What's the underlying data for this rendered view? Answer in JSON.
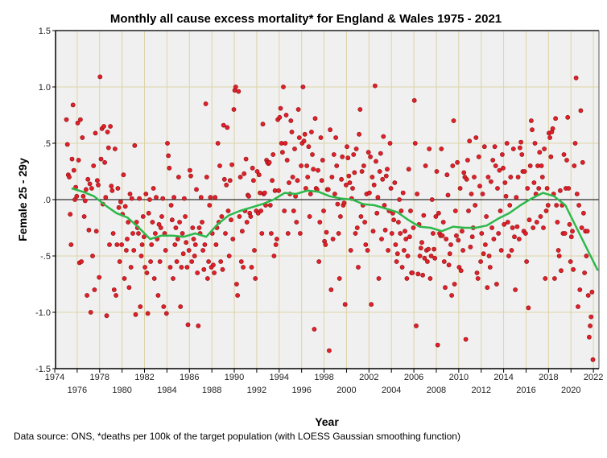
{
  "chart_data": {
    "type": "scatter",
    "title": "Monthly all cause excess mortality* for England & Wales 1975 - 2021",
    "xlabel": "Year",
    "ylabel": "Female 25 - 29y",
    "footnote": "Data source: ONS, *deaths per 100k of the target population (with LOESS Gaussian smoothing function)",
    "xlim": [
      1974,
      2022
    ],
    "ylim": [
      -1.5,
      1.5
    ],
    "x_ticks": [
      "1974",
      "1976",
      "1978",
      "1980",
      "1982",
      "1984",
      "1986",
      "1988",
      "1990",
      "1992",
      "1994",
      "1996",
      "1998",
      "2000",
      "2002",
      "2004",
      "2006",
      "2008",
      "2010",
      "2012",
      "2014",
      "2016",
      "2018",
      "2020",
      "2022"
    ],
    "y_ticks": [
      {
        "value": 1.5,
        "label": "1.5"
      },
      {
        "value": 1.0,
        "label": "1.0"
      },
      {
        "value": 0.5,
        "label": ".5"
      },
      {
        "value": 0.0,
        "label": ".0"
      },
      {
        "value": -0.5,
        "label": "-.5"
      },
      {
        "value": -1.0,
        "label": "-1.0"
      },
      {
        "value": -1.5,
        "label": "-1.5"
      }
    ],
    "grid": true,
    "colors": {
      "points": "#e0202a",
      "point_edge": "#8b1010",
      "trend": "#2db84a",
      "plot_bg": "#f0f0f0",
      "grid": "#dcd3a8"
    },
    "series": [
      {
        "name": "Monthly excess mortality",
        "type": "scatter",
        "monthly_by_year": {
          "1975": [
            0.71,
            0.49,
            0.22,
            0.2,
            -0.13,
            -0.4,
            0.36,
            0.84,
            0.26,
            0.0,
            0.11,
            0.03
          ],
          "1976": [
            0.68,
            0.35,
            -0.56,
            0.71,
            -0.55,
            0.55,
            0.03,
            -0.15,
            -0.01,
            0.09,
            -0.85,
            0.18
          ],
          "1977": [
            -0.27,
            0.14,
            -1.0,
            0.1,
            -0.5,
            0.3,
            -0.8,
            0.59,
            -0.28,
            0.17,
            0.13,
            -0.69
          ],
          "1978": [
            1.09,
            0.36,
            0.63,
            -0.04,
            0.65,
            0.33,
            0.02,
            -1.03,
            0.6,
            0.46,
            -0.4,
            0.65
          ],
          "1979": [
            0.12,
            0.08,
            -0.3,
            -0.8,
            0.45,
            -0.85,
            -0.4,
            0.1,
            -0.07,
            -0.55,
            -0.02,
            -0.4
          ],
          "1980": [
            -0.13,
            0.22,
            -0.7,
            -0.06,
            -0.45,
            -0.35,
            -0.2,
            -0.78,
            0.05,
            -0.6,
            0.01,
            -0.3
          ],
          "1981": [
            -0.45,
            0.48,
            -1.02,
            -0.2,
            -0.25,
            -0.3,
            0.01,
            -0.95,
            -0.5,
            -0.4,
            -0.15,
            -0.33
          ],
          "1982": [
            -0.6,
            0.05,
            -0.65,
            -1.01,
            -0.12,
            0.0,
            -0.55,
            -0.4,
            -0.2,
            0.1,
            -0.7,
            -0.3
          ],
          "1983": [
            0.02,
            -0.35,
            -0.85,
            -0.22,
            -0.55,
            -0.25,
            -0.15,
            0.01,
            -0.95,
            -0.3,
            -0.45,
            -1.01
          ],
          "1984": [
            0.5,
            0.39,
            0.28,
            -0.6,
            -0.05,
            -0.18,
            -0.7,
            0.02,
            -0.4,
            -0.25,
            -0.55,
            -0.35
          ],
          "1985": [
            0.2,
            -0.2,
            -0.95,
            -0.6,
            -0.3,
            -0.48,
            0.01,
            -0.15,
            -0.38,
            -0.6,
            -1.11,
            -0.45
          ],
          "1986": [
            0.26,
            0.21,
            -0.55,
            -0.25,
            -0.35,
            -0.5,
            -0.4,
            0.09,
            -0.65,
            -1.12,
            -0.25,
            -0.3
          ],
          "1987": [
            0.02,
            -0.2,
            -0.45,
            -0.62,
            -0.4,
            0.85,
            0.2,
            -0.7,
            -0.55,
            -0.05,
            0.02,
            -0.6
          ],
          "1988": [
            -0.3,
            -0.58,
            -0.65,
            0.02,
            -0.4,
            -0.25,
            0.5,
            -0.2,
            0.3,
            -0.55,
            -0.15,
            -0.62
          ],
          "1989": [
            0.66,
            0.18,
            -0.3,
            0.13,
            0.64,
            -0.1,
            -0.5,
            0.17,
            -0.18,
            0.31,
            -0.35,
            0.8
          ],
          "1990": [
            0.97,
            1.0,
            -0.75,
            -0.85,
            0.96,
            -0.15,
            0.2,
            -0.55,
            -0.28,
            -0.6,
            0.23,
            -0.1
          ],
          "1991": [
            0.36,
            -0.2,
            0.04,
            0.03,
            -0.12,
            -0.15,
            -0.6,
            0.28,
            0.17,
            -0.45,
            -0.7,
            -0.1
          ],
          "1992": [
            0.25,
            -0.12,
            0.22,
            0.06,
            -0.1,
            -0.3,
            0.67,
            0.05,
            0.06,
            -0.05,
            0.35,
            0.33
          ],
          "1993": [
            0.32,
            0.33,
            -0.05,
            -0.3,
            0.17,
            0.4,
            -0.5,
            0.08,
            -0.4,
            -0.35,
            0.71,
            0.08
          ],
          "1994": [
            0.73,
            0.81,
            0.5,
            0.42,
            1.0,
            -0.1,
            0.5,
            0.75,
            0.35,
            -0.3,
            0.15,
            0.05
          ],
          "1995": [
            0.7,
            0.6,
            0.2,
            -0.1,
            0.45,
            0.03,
            -0.2,
            0.17,
            0.8,
            0.55,
            -0.3,
            0.3
          ],
          "1996": [
            0.5,
            1.0,
            0.52,
            0.58,
            0.1,
            0.3,
            0.2,
            0.47,
            -0.15,
            0.05,
            0.6,
            0.4
          ],
          "1997": [
            0.27,
            -1.15,
            0.72,
            0.1,
            0.09,
            0.26,
            -0.55,
            -0.2,
            0.55,
            0.17,
            0.35,
            -0.1
          ],
          "1998": [
            -0.37,
            -0.4,
            -0.29,
            0.09,
            0.09,
            -1.34,
            0.62,
            -0.8,
            0.2,
            -0.35,
            0.4,
            0.05
          ],
          "1999": [
            0.55,
            0.3,
            -0.04,
            -0.3,
            -0.7,
            -0.15,
            0.18,
            0.38,
            -0.05,
            -0.03,
            -0.93,
            0.13
          ],
          "2000": [
            0.47,
            0.37,
            0.21,
            0.15,
            -0.45,
            0.01,
            0.1,
            0.4,
            0.24,
            -0.3,
            0.45,
            -0.25
          ],
          "2001": [
            -0.6,
            0.58,
            0.8,
            -0.15,
            0.25,
            -0.05,
            0.3,
            -0.2,
            -0.4,
            0.05,
            -0.45,
            0.42
          ],
          "2002": [
            0.06,
            0.38,
            -0.93,
            0.2,
            -0.28,
            0.13,
            1.01,
            0.34,
            -0.12,
            0.02,
            -0.7,
            0.25
          ],
          "2003": [
            0.41,
            -0.35,
            0.18,
            0.56,
            -0.05,
            -0.27,
            0.21,
            0.27,
            -0.45,
            -0.1,
            0.5,
            0.1
          ],
          "2004": [
            -0.3,
            -0.12,
            -0.18,
            0.15,
            -0.4,
            -0.55,
            -0.48,
            -0.2,
            0.0,
            -0.3,
            -0.1,
            -0.6
          ],
          "2005": [
            0.06,
            -0.45,
            -0.28,
            -0.35,
            -0.7,
            -0.5,
            0.27,
            -0.33,
            -0.1,
            -0.65,
            -0.65,
            -0.25
          ],
          "2006": [
            0.88,
            0.5,
            -1.12,
            0.05,
            -0.66,
            -0.22,
            -0.5,
            -0.43,
            -0.38,
            -0.67,
            -0.14,
            -0.52
          ],
          "2007": [
            0.3,
            -0.45,
            -0.55,
            -0.44,
            0.45,
            -0.7,
            -0.5,
            0.0,
            -0.3,
            -0.44,
            -0.52,
            -0.15
          ],
          "2008": [
            0.25,
            -1.29,
            -0.12,
            -0.3,
            -0.32,
            0.45,
            -0.32,
            -0.2,
            -0.55,
            -0.78,
            -0.35,
            0.22
          ],
          "2009": [
            0.04,
            -0.58,
            -0.48,
            -0.4,
            -0.85,
            0.3,
            0.7,
            -0.75,
            -0.1,
            -0.32,
            0.33,
            -0.36
          ],
          "2010": [
            -0.6,
            0.1,
            -0.63,
            -0.28,
            -0.45,
            0.24,
            0.2,
            -1.24,
            0.18,
            0.35,
            -0.1,
            0.52
          ],
          "2011": [
            -0.42,
            0.05,
            -0.33,
            -0.25,
            0.2,
            -0.05,
            0.55,
            -0.65,
            -0.7,
            0.38,
            0.12,
            -0.55
          ],
          "2012": [
            -0.3,
            0.05,
            -0.48,
            0.47,
            -0.4,
            -0.15,
            -0.78,
            0.2,
            -0.5,
            -0.6,
            0.16,
            -0.25
          ],
          "2013": [
            0.35,
            -0.35,
            0.47,
            0.3,
            -0.75,
            0.1,
            -0.3,
            0.26,
            -0.1,
            -0.45,
            0.4,
            0.28
          ],
          "2014": [
            -0.22,
            0.15,
            0.03,
            0.5,
            -0.2,
            -0.5,
            -0.05,
            0.2,
            -0.45,
            -0.25,
            0.45,
            -0.33
          ],
          "2015": [
            -0.8,
            0.02,
            -0.24,
            0.2,
            -0.35,
            0.46,
            0.51,
            0.4,
            0.25,
            -0.28,
            0.25,
            -0.3
          ],
          "2016": [
            -0.55,
            0.1,
            -0.96,
            -0.18,
            0.3,
            0.7,
            0.62,
            -0.25,
            0.15,
            0.5,
            0.05,
            -0.2
          ],
          "2017": [
            0.3,
            0.1,
            0.42,
            -0.15,
            0.3,
            0.2,
            -0.25,
            0.45,
            -0.7,
            -0.1,
            0.1,
            -0.05
          ],
          "2018": [
            0.59,
            0.55,
            0.38,
            0.6,
            0.63,
            0.05,
            -0.7,
            0.72,
            -0.05,
            -0.2,
            -0.45,
            -0.5
          ],
          "2019": [
            0.08,
            -0.63,
            -0.05,
            -0.3,
            0.4,
            -0.3,
            0.1,
            0.35,
            0.73,
            0.1,
            -0.22,
            -0.55
          ],
          "2020": [
            -0.33,
            -0.28,
            -0.62,
            0.3,
            0.5,
            1.08,
            0.05,
            -0.95,
            -0.05,
            -0.8,
            0.79,
            -0.25
          ],
          "2021": [
            0.33,
            -0.12,
            -0.65,
            -0.28,
            -0.5,
            -0.28,
            -0.85,
            -1.22,
            -1.12,
            -1.04,
            -0.82,
            -1.42
          ]
        }
      },
      {
        "name": "LOESS Gaussian smoothing",
        "type": "line",
        "x": [
          1975,
          1976,
          1977,
          1978,
          1979,
          1980,
          1981,
          1982,
          1983,
          1984,
          1985,
          1986,
          1987,
          1988,
          1989,
          1990,
          1991,
          1992,
          1993,
          1994,
          1995,
          1996,
          1997,
          1998,
          1999,
          2000,
          2001,
          2002,
          2003,
          2004,
          2005,
          2006,
          2007,
          2008,
          2009,
          2010,
          2011,
          2012,
          2013,
          2014,
          2015,
          2016,
          2017,
          2018,
          2019,
          2020,
          2021,
          2021.9
        ],
        "y": [
          0.1,
          0.07,
          0.03,
          -0.05,
          -0.12,
          -0.16,
          -0.25,
          -0.35,
          -0.32,
          -0.32,
          -0.33,
          -0.3,
          -0.33,
          -0.22,
          -0.14,
          -0.1,
          -0.07,
          -0.04,
          0.0,
          0.06,
          0.05,
          0.08,
          0.07,
          0.03,
          0.01,
          0.0,
          -0.04,
          -0.05,
          -0.08,
          -0.11,
          -0.18,
          -0.24,
          -0.25,
          -0.28,
          -0.24,
          -0.25,
          -0.25,
          -0.23,
          -0.17,
          -0.12,
          -0.05,
          0.01,
          0.06,
          0.03,
          -0.05,
          -0.25,
          -0.45,
          -0.63
        ]
      }
    ]
  }
}
